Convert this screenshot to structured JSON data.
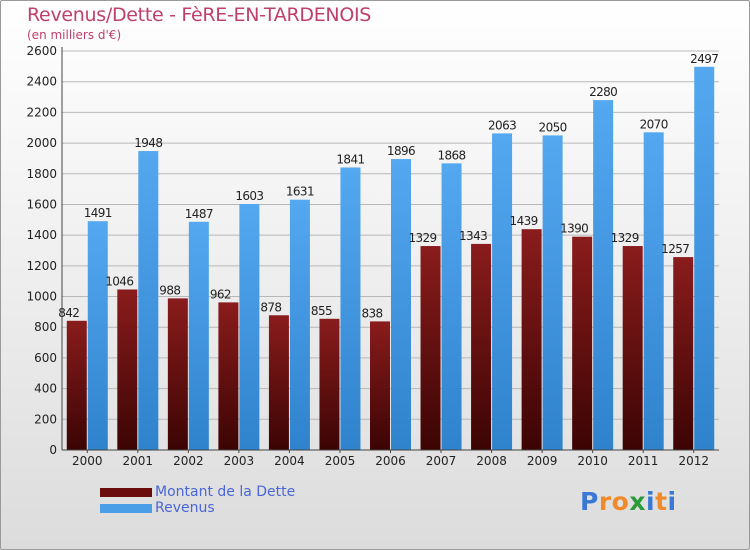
{
  "chart_data": {
    "type": "bar",
    "title": "Revenus/Dette - FèRE-EN-TARDENOIS",
    "subtitle": "(en milliers d'€)",
    "categories": [
      "2000",
      "2001",
      "2002",
      "2003",
      "2004",
      "2005",
      "2006",
      "2007",
      "2008",
      "2009",
      "2010",
      "2011",
      "2012"
    ],
    "series": [
      {
        "name": "Montant de la Dette",
        "color": "#7a1010",
        "values": [
          842,
          1046,
          988,
          962,
          878,
          855,
          838,
          1329,
          1343,
          1439,
          1390,
          1329,
          1257
        ],
        "labels": [
          "842",
          "1046",
          "988",
          "962",
          "878",
          "855",
          "838",
          "1329",
          "1343",
          "1439",
          "1390",
          "1329",
          "1257"
        ]
      },
      {
        "name": "Revenus",
        "color": "#4a9ee8",
        "values": [
          1491,
          1948,
          1487,
          1603,
          1631,
          1841,
          1896,
          1868,
          2063,
          2050,
          2280,
          2070,
          2497
        ],
        "labels": [
          "1491",
          "1948",
          "1487",
          "1603",
          "1631",
          "1841",
          "1896",
          "1868",
          "2063",
          "2050",
          "2280",
          "2070",
          "2497"
        ]
      }
    ],
    "ylim": [
      0,
      2600
    ],
    "yticks": [
      0,
      200,
      400,
      600,
      800,
      1000,
      1200,
      1400,
      1600,
      1800,
      2000,
      2200,
      2400,
      2600
    ],
    "xlabel": "",
    "ylabel": "",
    "legend_position": "bottom-left"
  },
  "logo": {
    "text": "Proxiti",
    "letters": [
      "P",
      "r",
      "o",
      "x",
      "i",
      "t",
      "i"
    ],
    "colors": [
      "#3a78d6",
      "#f08a2a",
      "#f08a2a",
      "#2a9a3a",
      "#3a78d6",
      "#f08a2a",
      "#3a78d6"
    ]
  }
}
